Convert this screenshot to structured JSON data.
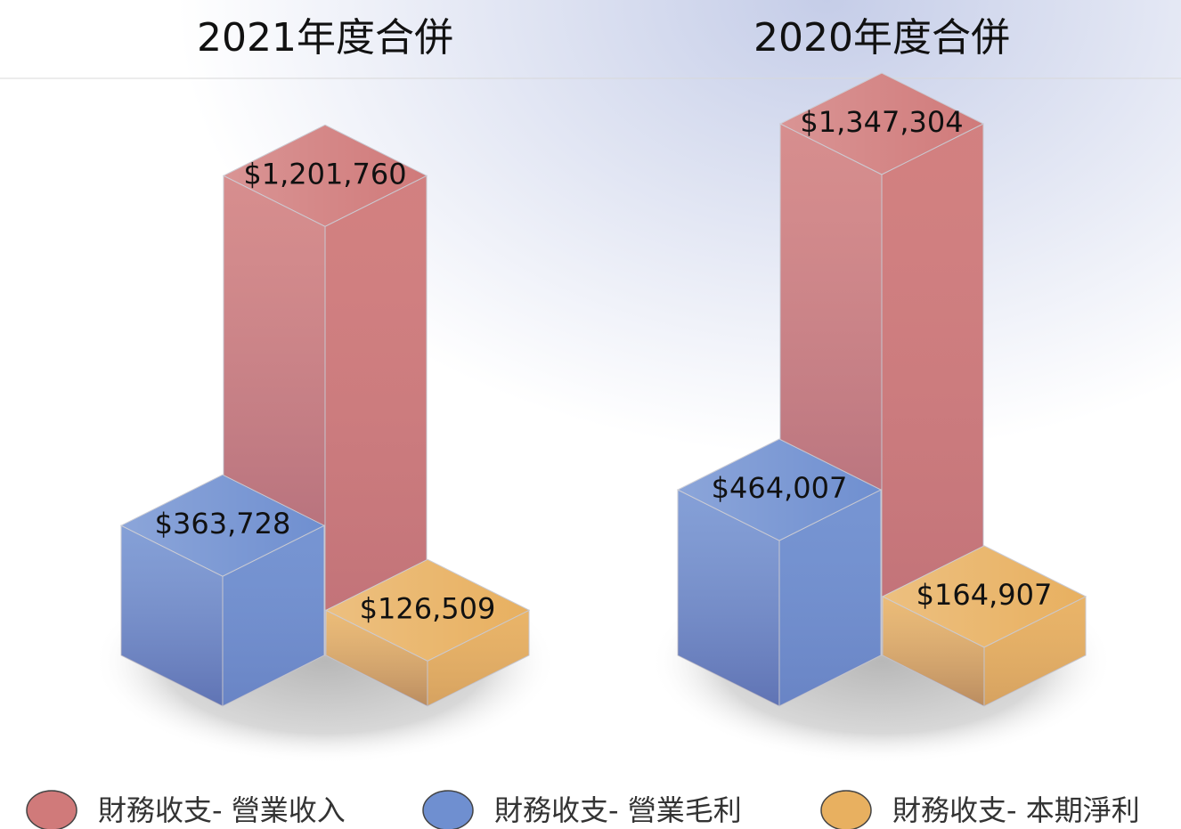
{
  "chart_data": {
    "type": "bar3d",
    "categories": [
      "2021年度合併",
      "2020年度合併"
    ],
    "series": [
      {
        "name": "財務收支- 營業收入",
        "color": "#d07a7a",
        "values": [
          1201760,
          1347304
        ],
        "value_labels": [
          "$1,201,760",
          "$1,347,304"
        ]
      },
      {
        "name": "財務收支- 營業毛利",
        "color": "#6f8fd0",
        "values": [
          363728,
          464007
        ],
        "value_labels": [
          "$363,728",
          "$464,007"
        ]
      },
      {
        "name": "財務收支- 本期淨利",
        "color": "#e8b060",
        "values": [
          126509,
          164907
        ],
        "value_labels": [
          "$126,509",
          "$164,907"
        ]
      }
    ]
  }
}
